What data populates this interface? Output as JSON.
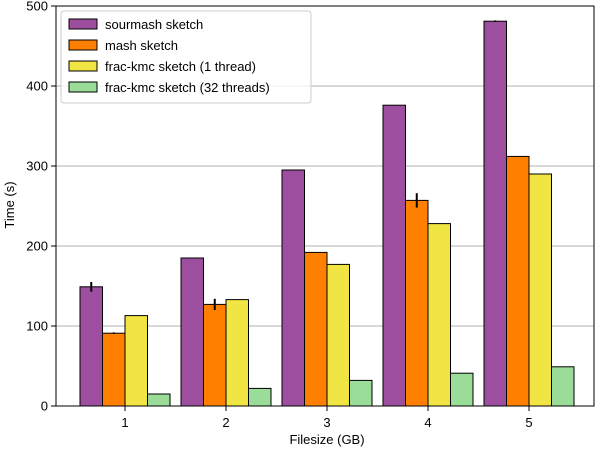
{
  "chart_data": {
    "type": "bar",
    "categories": [
      "1",
      "2",
      "3",
      "4",
      "5"
    ],
    "xlabel": "Filesize (GB)",
    "ylabel": "Time (s)",
    "ylim": [
      0,
      500
    ],
    "yticks": [
      "0",
      "100",
      "200",
      "300",
      "400",
      "500"
    ],
    "grid": "horizontal",
    "legend_position": "top-left",
    "series": [
      {
        "name": "sourmash sketch",
        "color": "#9e4e9e",
        "values": [
          149,
          185,
          295,
          376,
          481
        ],
        "errors": [
          6,
          0,
          0,
          0,
          1
        ]
      },
      {
        "name": "mash sketch",
        "color": "#ff8000",
        "values": [
          91,
          127,
          192,
          257,
          312
        ],
        "errors": [
          1,
          7,
          0,
          9,
          0
        ]
      },
      {
        "name": "frac-kmc sketch (1 thread)",
        "color": "#f1e543",
        "values": [
          113,
          133,
          177,
          228,
          290
        ],
        "errors": [
          0,
          0,
          0,
          0,
          0
        ]
      },
      {
        "name": "frac-kmc sketch (32 threads)",
        "color": "#99dd99",
        "values": [
          15,
          22,
          32,
          41,
          49
        ],
        "errors": [
          0,
          0,
          0,
          0,
          0
        ]
      }
    ]
  }
}
